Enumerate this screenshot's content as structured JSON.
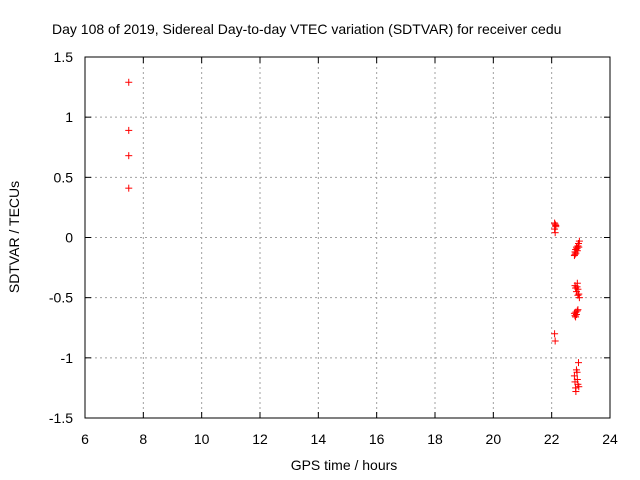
{
  "chart_data": {
    "type": "scatter",
    "title": "Day 108 of 2019, Sidereal Day-to-day VTEC variation (SDTVAR) for receiver cedu",
    "xlabel": "GPS time / hours",
    "ylabel": "SDTVAR / TECUs",
    "xlim": [
      6,
      24
    ],
    "ylim": [
      -1.5,
      1.5
    ],
    "xticks": [
      "6",
      "8",
      "10",
      "12",
      "14",
      "16",
      "18",
      "20",
      "22",
      "24"
    ],
    "yticks": [
      "1.5",
      "1",
      "0.5",
      "0",
      "-0.5",
      "-1",
      "-1.5"
    ],
    "grid": true,
    "marker": "+",
    "color": "#ff0000",
    "series": [
      {
        "x": [
          7.5,
          7.5,
          7.5,
          7.5,
          22.1,
          22.12,
          22.14,
          22.1,
          22.12,
          22.14,
          22.1,
          22.12,
          22.8,
          22.82,
          22.85,
          22.87,
          22.9,
          22.92,
          22.95,
          22.83,
          22.88,
          22.93,
          22.78,
          22.8,
          22.8,
          22.82,
          22.85,
          22.87,
          22.9,
          22.93,
          22.95,
          22.88,
          22.9,
          22.78,
          22.8,
          22.83,
          22.85,
          22.88,
          22.9,
          22.82,
          22.78,
          22.8,
          22.82,
          22.85,
          22.88,
          22.9,
          22.92,
          22.83,
          22.87,
          22.93
        ],
        "y": [
          1.29,
          0.89,
          0.68,
          0.41,
          0.12,
          0.11,
          0.1,
          0.07,
          0.04,
          0.09,
          -0.8,
          -0.86,
          -0.12,
          -0.1,
          -0.08,
          -0.09,
          -0.07,
          -0.05,
          -0.03,
          -0.13,
          -0.11,
          -0.08,
          -0.15,
          -0.14,
          -0.4,
          -0.42,
          -0.45,
          -0.41,
          -0.43,
          -0.47,
          -0.5,
          -0.38,
          -0.48,
          -0.63,
          -0.65,
          -0.62,
          -0.64,
          -0.61,
          -0.6,
          -0.66,
          -1.15,
          -1.2,
          -1.25,
          -1.1,
          -1.18,
          -1.22,
          -1.04,
          -1.28,
          -1.12,
          -1.24
        ]
      }
    ]
  }
}
